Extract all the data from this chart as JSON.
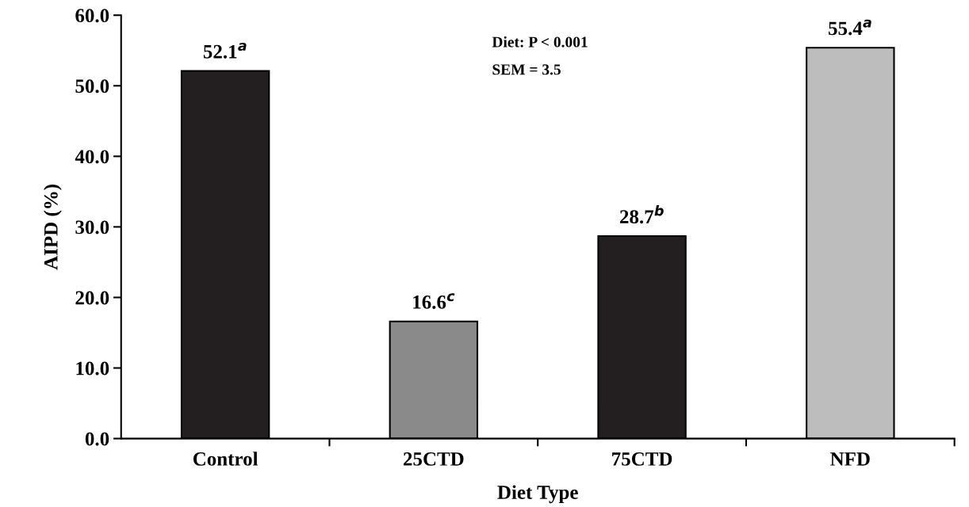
{
  "chart_data": {
    "type": "bar",
    "xlabel": "Diet Type",
    "ylabel": "AIPD (%)",
    "categories": [
      "Control",
      "25CTD",
      "75CTD",
      "NFD"
    ],
    "values": [
      52.1,
      16.6,
      28.7,
      55.4
    ],
    "colors": [
      "#231f20",
      "#8a8a8a",
      "#231f20",
      "#bdbdbd"
    ],
    "value_labels": [
      "52.1$^{a}$",
      "16.6$^{c}$",
      "28.7$^{b}$",
      "55.4$^{a}$"
    ],
    "ylim": [
      0,
      60
    ],
    "yticks": [
      {
        "value": 0,
        "label": "0.0"
      },
      {
        "value": 10,
        "label": "10.0"
      },
      {
        "value": 20,
        "label": "20.0"
      },
      {
        "value": 30,
        "label": "30.0"
      },
      {
        "value": 40,
        "label": "40.0"
      },
      {
        "value": 50,
        "label": "50.0"
      },
      {
        "value": 60,
        "label": "60.0"
      }
    ],
    "annotations": [
      "Diet: P < 0.001",
      "SEM = 3.5"
    ],
    "grid": false,
    "legend": false
  }
}
